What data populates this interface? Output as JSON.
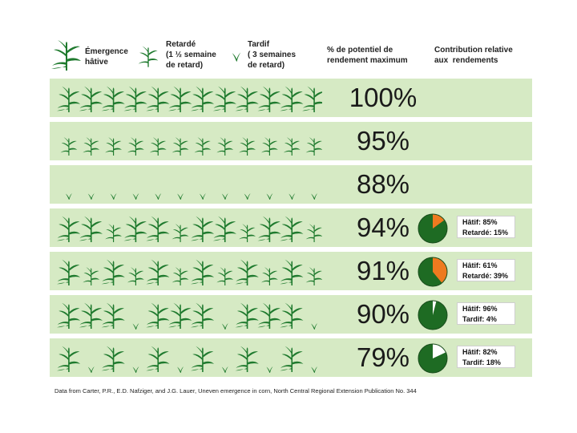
{
  "legend": [
    {
      "label": "Émergence\nhâtive",
      "icon": "early-plant-icon"
    },
    {
      "label": "Retardé\n(1 ½ semaine\nde retard)",
      "icon": "delayed-plant-icon"
    },
    {
      "label": "Tardif\n( 3 semaines\nde retard)",
      "icon": "late-plant-icon"
    }
  ],
  "headers": {
    "potential": "% de potentiel de\nrendement maximum",
    "contribution": "Contribution relative\naux  rendements"
  },
  "rows": [
    {
      "pattern": [
        "E",
        "E",
        "E",
        "E",
        "E",
        "E",
        "E",
        "E",
        "E",
        "E",
        "E",
        "E"
      ],
      "percent": "100%"
    },
    {
      "pattern": [
        "D",
        "D",
        "D",
        "D",
        "D",
        "D",
        "D",
        "D",
        "D",
        "D",
        "D",
        "D"
      ],
      "percent": "95%"
    },
    {
      "pattern": [
        "L",
        "L",
        "L",
        "L",
        "L",
        "L",
        "L",
        "L",
        "L",
        "L",
        "L",
        "L"
      ],
      "percent": "88%"
    },
    {
      "pattern": [
        "E",
        "E",
        "D",
        "E",
        "E",
        "D",
        "E",
        "E",
        "D",
        "E",
        "E",
        "D"
      ],
      "percent": "94%",
      "contribution": {
        "line1": "Hâtif: 85%",
        "line2": "Retardé: 15%",
        "early_fraction": 0.85,
        "other": "delayed"
      }
    },
    {
      "pattern": [
        "E",
        "D",
        "E",
        "D",
        "E",
        "D",
        "E",
        "D",
        "E",
        "D",
        "E",
        "D"
      ],
      "percent": "91%",
      "contribution": {
        "line1": "Hâtif: 61%",
        "line2": "Retardé: 39%",
        "early_fraction": 0.61,
        "other": "delayed"
      }
    },
    {
      "pattern": [
        "E",
        "E",
        "E",
        "L",
        "E",
        "E",
        "E",
        "L",
        "E",
        "E",
        "E",
        "L"
      ],
      "percent": "90%",
      "contribution": {
        "line1": "Hâtif: 96%",
        "line2": "Tardif: 4%",
        "early_fraction": 0.96,
        "other": "late"
      }
    },
    {
      "pattern": [
        "E",
        "L",
        "E",
        "L",
        "E",
        "L",
        "E",
        "L",
        "E",
        "L",
        "E",
        "L"
      ],
      "percent": "79%",
      "contribution": {
        "line1": "Hâtif: 82%",
        "line2": "Tardif: 18%",
        "early_fraction": 0.82,
        "other": "late"
      }
    }
  ],
  "colors": {
    "row_bg": "#d6eac4",
    "plant": "#1f7a2e",
    "early_slice": "#1e6b23",
    "delayed_slice": "#ee7a1f",
    "late_slice": "#ffffff"
  },
  "footer": "Data from Carter, P.R., E.D. Nafziger, and J.G. Lauer, Uneven emergence in corn, North Central Regional Extension Publication No. 344"
}
